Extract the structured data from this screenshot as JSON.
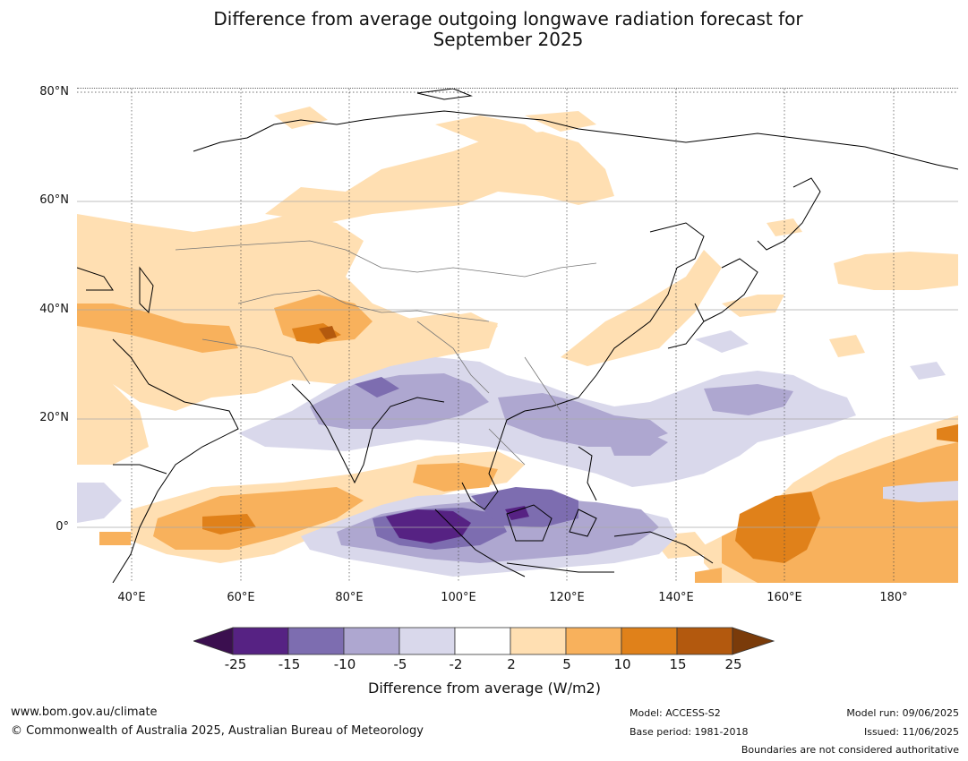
{
  "title": {
    "line1": "Difference from average outgoing longwave radiation forecast for",
    "line2": "September 2025"
  },
  "map": {
    "lat_labels": [
      "80°N",
      "60°N",
      "40°N",
      "20°N",
      "0°"
    ],
    "lon_labels": [
      "40°E",
      "60°E",
      "80°E",
      "100°E",
      "120°E",
      "140°E",
      "160°E",
      "180°"
    ],
    "colors": {
      "lt_m25": "#3b0f4f",
      "m25_m15": "#562283",
      "m15_m10": "#7d6db0",
      "m10_m5": "#aea7d0",
      "m5_m2": "#d9d8eb",
      "m2_2": "#ffffff",
      "p2_p5": "#ffdfb2",
      "p5_p10": "#f8b15c",
      "p10_p15": "#e0811a",
      "p15_p25": "#b3590e",
      "gt_p25": "#7a3b0a"
    }
  },
  "colorbar": {
    "ticks": [
      "-25",
      "-15",
      "-10",
      "-5",
      "-2",
      "2",
      "5",
      "10",
      "15",
      "25"
    ],
    "label": "Difference from average (W/m2)"
  },
  "footer": {
    "website": "www.bom.gov.au/climate",
    "copyright": "© Commonwealth of Australia 2025, Australian Bureau of Meteorology",
    "model": "Model: ACCESS-S2",
    "base_period": "Base period: 1981-2018",
    "model_run": "Model run: 09/06/2025",
    "issued": "Issued: 11/06/2025",
    "disclaimer": "Boundaries are not considered authoritative"
  }
}
